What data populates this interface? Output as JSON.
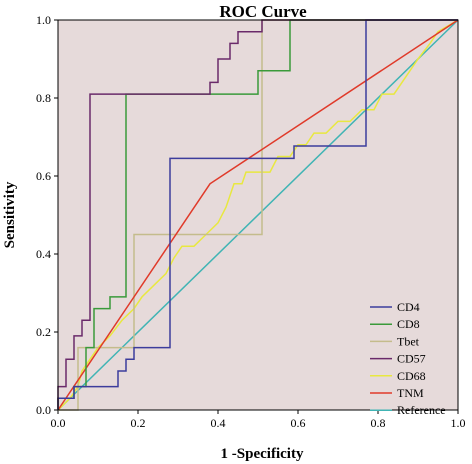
{
  "chart_data": {
    "type": "line",
    "title": "ROC Curve",
    "xlabel": "1 -Specificity",
    "ylabel": "Sensitivity",
    "xlim": [
      0,
      1
    ],
    "ylim": [
      0,
      1
    ],
    "xticks": [
      "0.0",
      "0.2",
      "0.4",
      "0.6",
      "0.8",
      "1.0"
    ],
    "yticks": [
      "0.0",
      "0.2",
      "0.4",
      "0.6",
      "0.8",
      "1.0"
    ],
    "grid": false,
    "legend_position": "bottom-right",
    "background": "#e6dada",
    "series": [
      {
        "name": "CD4",
        "color": "#3c3c9c",
        "x": [
          0,
          0,
          0.04,
          0.04,
          0.15,
          0.15,
          0.17,
          0.17,
          0.19,
          0.19,
          0.28,
          0.28,
          0.59,
          0.59,
          0.77,
          0.77,
          1.0
        ],
        "y": [
          0,
          0.03,
          0.03,
          0.06,
          0.06,
          0.1,
          0.1,
          0.13,
          0.13,
          0.16,
          0.16,
          0.645,
          0.645,
          0.677,
          0.677,
          1.0,
          1.0
        ]
      },
      {
        "name": "CD8",
        "color": "#3a9a3a",
        "x": [
          0,
          0,
          0.04,
          0.04,
          0.07,
          0.07,
          0.09,
          0.09,
          0.13,
          0.13,
          0.17,
          0.17,
          0.5,
          0.5,
          0.58,
          0.58,
          1.0
        ],
        "y": [
          0,
          0.03,
          0.03,
          0.06,
          0.06,
          0.16,
          0.16,
          0.26,
          0.26,
          0.29,
          0.29,
          0.81,
          0.81,
          0.87,
          0.87,
          1.0,
          1.0
        ]
      },
      {
        "name": "Tbet",
        "color": "#c4bc8c",
        "x": [
          0,
          0.05,
          0.05,
          0.19,
          0.19,
          0.51,
          0.51,
          1.0
        ],
        "y": [
          0,
          0,
          0.16,
          0.16,
          0.45,
          0.45,
          1.0,
          1.0
        ]
      },
      {
        "name": "CD57",
        "color": "#6a2a6a",
        "x": [
          0,
          0,
          0.02,
          0.02,
          0.04,
          0.04,
          0.06,
          0.06,
          0.08,
          0.08,
          0.28,
          0.28,
          0.38,
          0.38,
          0.4,
          0.4,
          0.43,
          0.43,
          0.45,
          0.45,
          0.51,
          0.51,
          1.0
        ],
        "y": [
          0,
          0.06,
          0.06,
          0.13,
          0.13,
          0.19,
          0.19,
          0.23,
          0.23,
          0.81,
          0.81,
          0.81,
          0.81,
          0.84,
          0.84,
          0.9,
          0.9,
          0.94,
          0.94,
          0.97,
          0.97,
          1.0,
          1.0
        ]
      },
      {
        "name": "CD68",
        "color": "#e8e840",
        "x": [
          0,
          0.03,
          0.05,
          0.06,
          0.08,
          0.1,
          0.13,
          0.16,
          0.19,
          0.21,
          0.24,
          0.27,
          0.29,
          0.31,
          0.34,
          0.37,
          0.4,
          0.42,
          0.43,
          0.44,
          0.46,
          0.47,
          0.49,
          0.51,
          0.53,
          0.55,
          0.58,
          0.6,
          0.62,
          0.64,
          0.67,
          0.7,
          0.73,
          0.76,
          0.79,
          0.81,
          0.84,
          0.86,
          0.88,
          0.9,
          0.93,
          0.95,
          1.0
        ],
        "y": [
          0,
          0.03,
          0.06,
          0.1,
          0.13,
          0.16,
          0.19,
          0.23,
          0.26,
          0.29,
          0.32,
          0.35,
          0.39,
          0.42,
          0.42,
          0.45,
          0.48,
          0.52,
          0.55,
          0.58,
          0.58,
          0.61,
          0.61,
          0.61,
          0.61,
          0.65,
          0.65,
          0.68,
          0.68,
          0.71,
          0.71,
          0.74,
          0.74,
          0.77,
          0.77,
          0.81,
          0.81,
          0.84,
          0.87,
          0.9,
          0.94,
          0.97,
          1.0
        ]
      },
      {
        "name": "TNM",
        "color": "#e03a2a",
        "x": [
          0,
          0.38,
          1.0
        ],
        "y": [
          0,
          0.58,
          1.0
        ]
      },
      {
        "name": "Reference",
        "color": "#40b4b4",
        "x": [
          0,
          1.0
        ],
        "y": [
          0,
          1.0
        ]
      }
    ]
  }
}
